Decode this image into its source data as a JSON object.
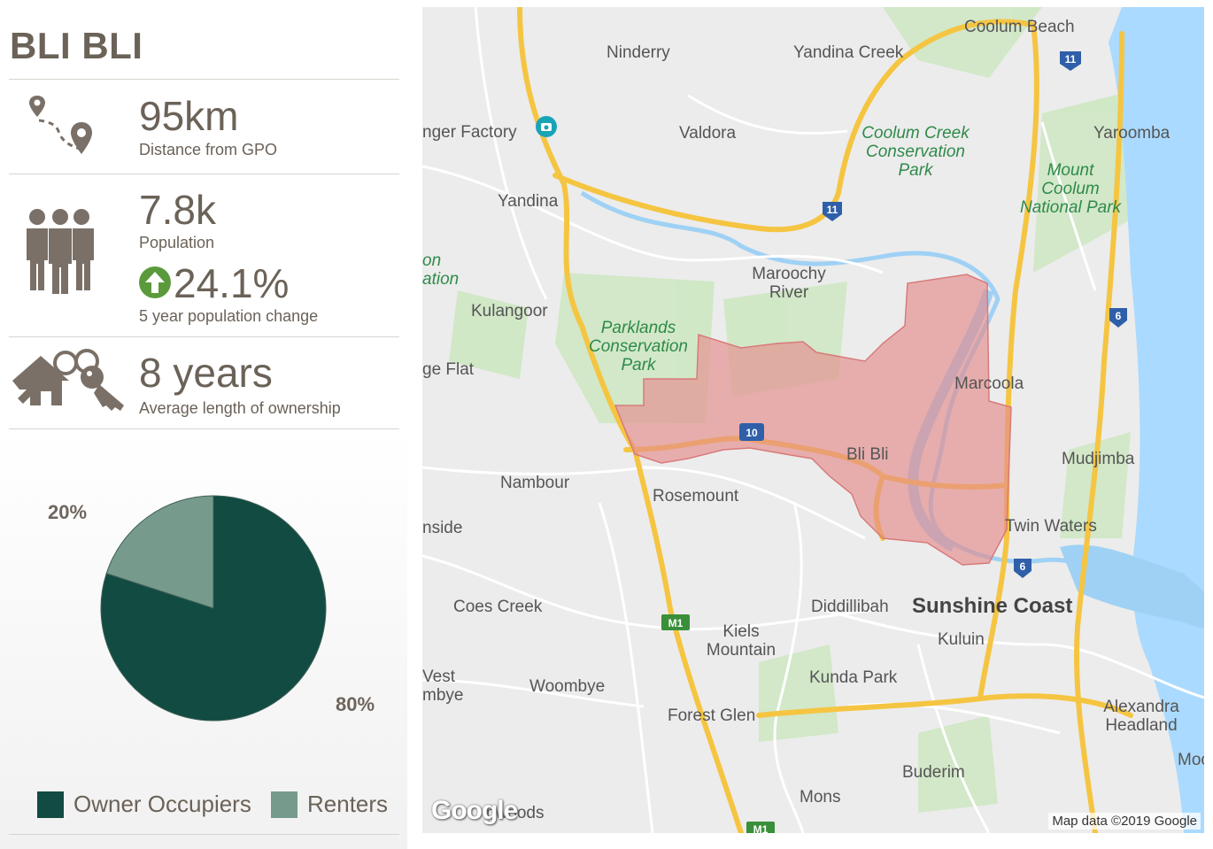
{
  "title": "BLI BLI",
  "stats": {
    "distance": {
      "value": "95km",
      "label": "Distance from GPO",
      "icon": "route-pins-icon"
    },
    "population": {
      "value": "7.8k",
      "label": "Population",
      "icon": "people-icon"
    },
    "population_change": {
      "value": "24.1%",
      "label": "5 year population change",
      "direction": "up",
      "icon": "up-arrow-icon",
      "color": "#5a9a3c"
    },
    "ownership": {
      "value": "8 years",
      "label": "Average length of ownership",
      "icon": "house-keys-icon"
    }
  },
  "chart_data": {
    "type": "pie",
    "slices": [
      {
        "name": "Owner Occupiers",
        "value": 80,
        "label": "80%",
        "color": "#114b42"
      },
      {
        "name": "Renters",
        "value": 20,
        "label": "20%",
        "color": "#769b8c"
      }
    ]
  },
  "legend": [
    {
      "label": "Owner Occupiers",
      "color": "#114b42"
    },
    {
      "label": "Renters",
      "color": "#769b8c"
    }
  ],
  "map": {
    "highlighted_area": "Bli Bli",
    "highlight_color": "#e58c8c",
    "places": [
      "Ninderry",
      "Yandina Creek",
      "Coolum Beach",
      "nger Factory",
      "Valdora",
      "Yaroomba",
      "Yandina",
      "Mount Coolum National Park",
      "on",
      "ation",
      "Maroochy River",
      "Kulangoor",
      "ge Flat",
      "Marcoola",
      "Bli Bli",
      "Nambour",
      "Rosemount",
      "Mudjimba",
      "nside",
      "Twin Waters",
      "Coes Creek",
      "Diddillibah",
      "Kiels Mountain",
      "Kuluin",
      "Vest",
      "mbye",
      "Woombye",
      "Kunda Park",
      "Forest Glen",
      "Alexandra Headland",
      "Moo",
      "Buderim",
      "Mons",
      "nwoods"
    ],
    "parks": [
      "Coolum Creek Conservation Park",
      "Parklands Conservation Park"
    ],
    "city": "Sunshine Coast",
    "road_shields": [
      "11",
      "11",
      "6",
      "6",
      "10",
      "M1",
      "M1"
    ],
    "logo": "Google",
    "attribution": "Map data ©2019 Google"
  }
}
